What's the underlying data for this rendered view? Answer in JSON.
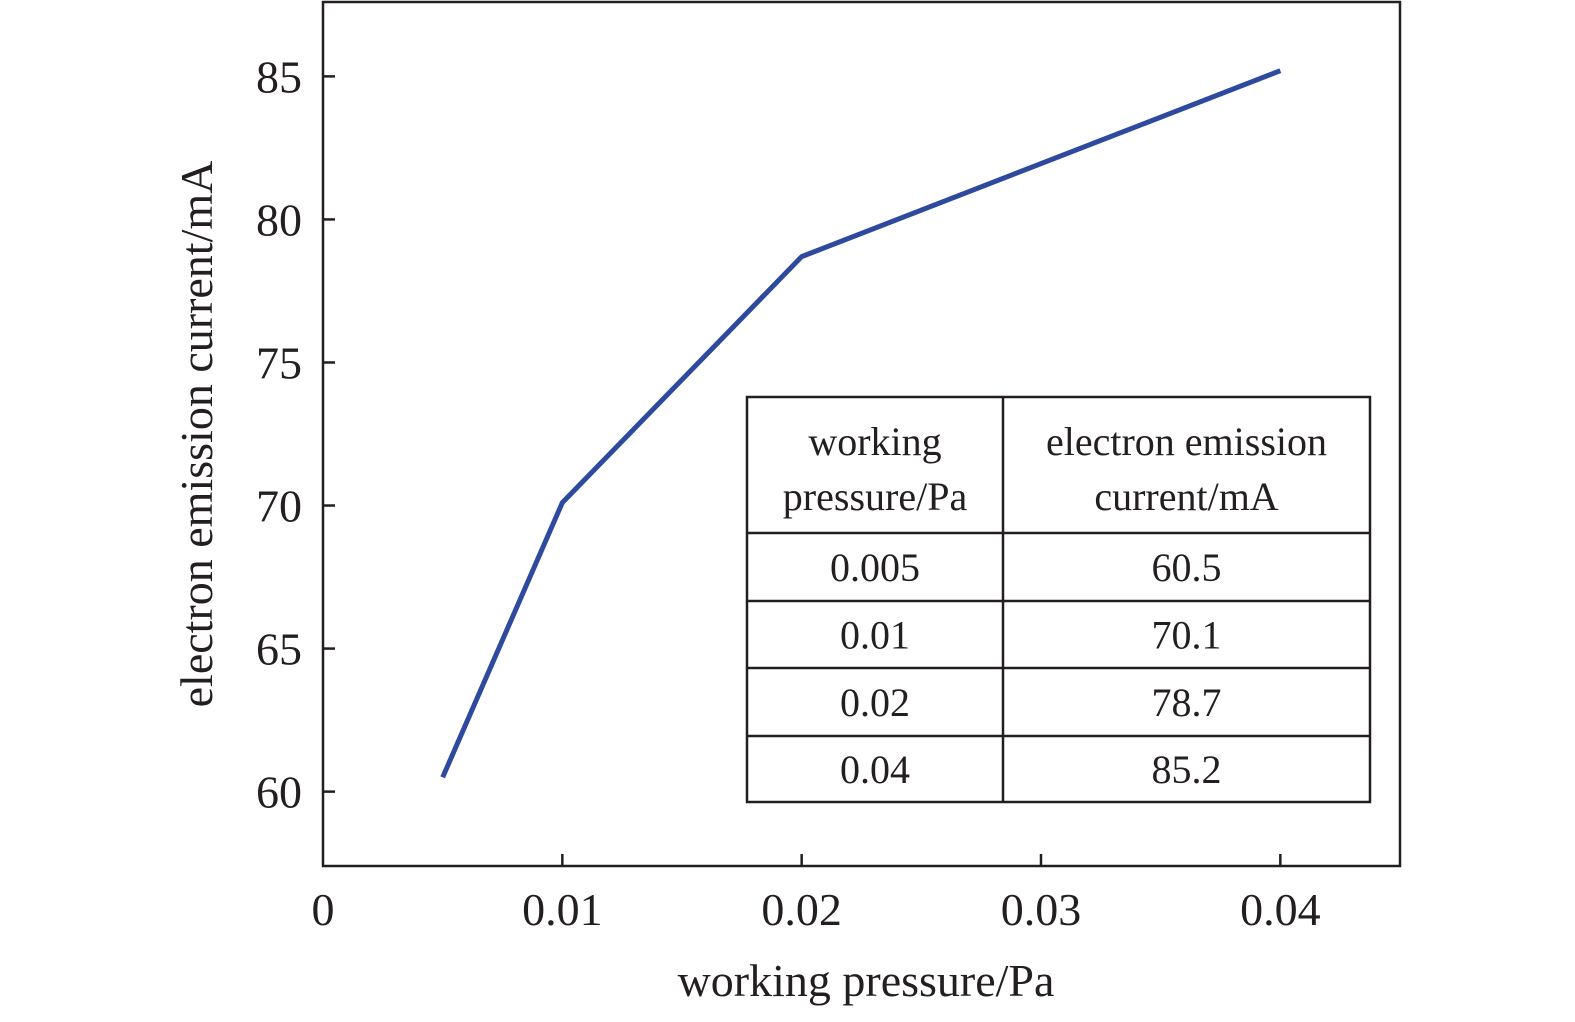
{
  "chart_data": {
    "type": "line",
    "title": "",
    "xlabel": "working pressure/Pa",
    "ylabel": "electron emission current/mA",
    "xlim": [
      0,
      0.045
    ],
    "ylim": [
      57.4,
      87.6
    ],
    "xticks": [
      0,
      0.01,
      0.02,
      0.03,
      0.04
    ],
    "xtick_labels": [
      "0",
      "0.01",
      "0.02",
      "0.03",
      "0.04"
    ],
    "yticks": [
      60,
      65,
      70,
      75,
      80,
      85
    ],
    "ytick_labels": [
      "60",
      "65",
      "70",
      "75",
      "80",
      "85"
    ],
    "grid": false,
    "series": [
      {
        "name": "electron emission current",
        "color": "#2e4a9e",
        "x": [
          0.005,
          0.01,
          0.02,
          0.04
        ],
        "y": [
          60.5,
          70.1,
          78.7,
          85.2
        ]
      }
    ],
    "inset_table": {
      "headers": [
        [
          "working",
          "pressure/Pa"
        ],
        [
          "electron emission",
          "current/mA"
        ]
      ],
      "rows": [
        [
          "0.005",
          "60.5"
        ],
        [
          "0.01",
          "70.1"
        ],
        [
          "0.02",
          "78.7"
        ],
        [
          "0.04",
          "85.2"
        ]
      ]
    }
  }
}
